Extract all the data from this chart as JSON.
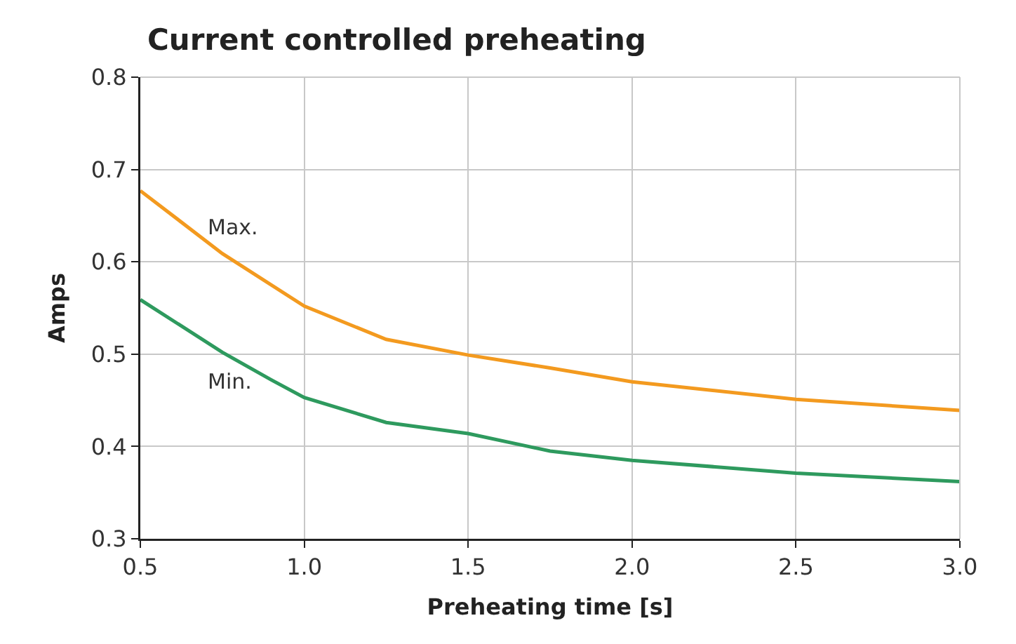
{
  "chart_data": {
    "type": "line",
    "title": "Current controlled preheating",
    "xlabel": "Preheating time [s]",
    "ylabel": "Amps",
    "xlim": [
      0.5,
      3.0
    ],
    "xticks": [
      {
        "value": 0.5,
        "label": "0.5"
      },
      {
        "value": 1.0,
        "label": "1.0"
      },
      {
        "value": 1.5,
        "label": "1.5"
      },
      {
        "value": 2.0,
        "label": "2.0"
      },
      {
        "value": 2.5,
        "label": "2.5"
      },
      {
        "value": 3.0,
        "label": "3.0"
      }
    ],
    "ylim": [
      0.3,
      0.8
    ],
    "yticks": [
      0.3,
      0.4,
      0.5,
      0.6,
      0.7,
      0.8
    ],
    "grid": true,
    "legend": false,
    "series": [
      {
        "name": "Max.",
        "color": "#f39a1f",
        "x": [
          0.5,
          0.75,
          1.0,
          1.25,
          1.5,
          1.75,
          2.0,
          2.5,
          3.0
        ],
        "values": [
          0.677,
          0.609,
          0.552,
          0.516,
          0.499,
          0.485,
          0.47,
          0.451,
          0.439
        ]
      },
      {
        "name": "Min.",
        "color": "#2e9a5e",
        "x": [
          0.5,
          0.75,
          0.9,
          1.0,
          1.25,
          1.5,
          1.75,
          2.0,
          2.5,
          3.0
        ],
        "values": [
          0.559,
          0.502,
          0.472,
          0.453,
          0.426,
          0.414,
          0.395,
          0.385,
          0.371,
          0.362
        ]
      }
    ]
  }
}
